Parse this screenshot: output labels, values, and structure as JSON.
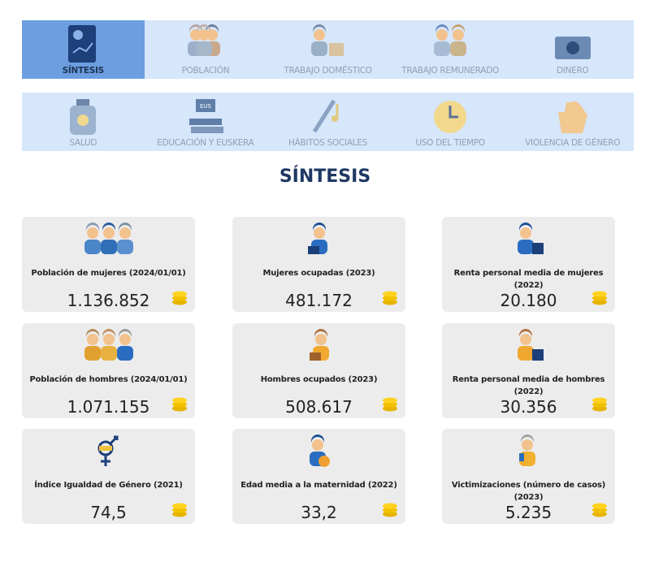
{
  "nav": {
    "rows": [
      [
        "SÍNTESIS",
        "POBLACIÓN",
        "TRABAJO DOMÉSTICO",
        "TRABAJO REMUNERADO",
        "DINERO"
      ],
      [
        "SALUD",
        "EDUCACIÓN Y EUSKERA",
        "HÁBITOS SOCIALES",
        "USO DEL TIEMPO",
        "VIOLENCIA DE GÉNERO"
      ]
    ],
    "icon_text": "EUS"
  },
  "title": "SÍNTESIS",
  "cards": [
    {
      "label": "Población de mujeres (2024/01/01)",
      "value": "1.136.852"
    },
    {
      "label": "Mujeres ocupadas (2023)",
      "value": "481.172"
    },
    {
      "label": "Renta personal media de mujeres (2022)",
      "value": "20.180"
    },
    {
      "label": "Población de hombres (2024/01/01)",
      "value": "1.071.155"
    },
    {
      "label": "Hombres ocupados (2023)",
      "value": "508.617"
    },
    {
      "label": "Renta personal media de hombres (2022)",
      "value": "30.356"
    },
    {
      "label": "Índice Igualdad de Género (2021)",
      "value": "74,5"
    },
    {
      "label": "Edad media a la maternidad (2022)",
      "value": "33,2"
    },
    {
      "label": "Victimizaciones (número de casos) (2023)",
      "value": "5.235"
    }
  ]
}
